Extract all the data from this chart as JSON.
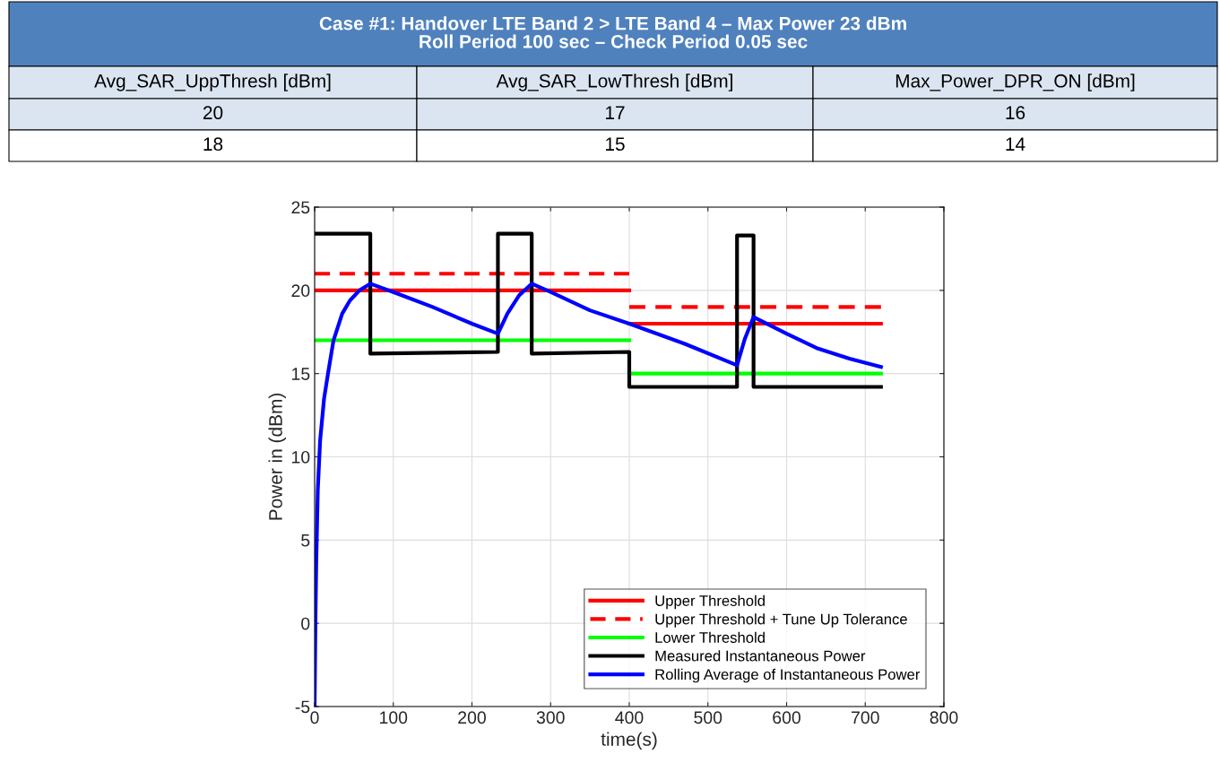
{
  "chart_data": {
    "type": "line",
    "title": "Case #1: Handover LTE Band 2 > LTE Band 4 – Max Power 23 dBm\nRoll Period 100 sec – Check Period 0.05 sec",
    "annotations": [
      "Avg_SAR_UppThresh [dBm]",
      "Avg_SAR_LowThresh [dBm]",
      "Max_Power_DPR_ON [dBm]",
      "20",
      "17",
      "16",
      "18",
      "15",
      "14"
    ],
    "xlabel": "time(s)",
    "ylabel": "Power in (dBm)",
    "xlim": [
      0,
      800
    ],
    "xticks": [
      0,
      100,
      200,
      300,
      400,
      500,
      600,
      700,
      800
    ],
    "ylim": [
      -5,
      25
    ],
    "yticks": [
      -5,
      0,
      5,
      10,
      15,
      20,
      25
    ],
    "grid": true,
    "legend": "bottom right",
    "series": [
      {
        "name": "Upper Threshold",
        "color": "#ff0000",
        "line_style": "solid",
        "x": [
          0,
          400
        ],
        "values": [
          20,
          20
        ]
      },
      {
        "color": "#ff0000",
        "line_style": "solid",
        "x": [
          400,
          720
        ],
        "values": [
          18,
          18
        ]
      },
      {
        "name": "Upper Threshold + Tune Up Tolerance",
        "color": "#ff0000",
        "line_style": "dashed",
        "x": [
          0,
          400
        ],
        "values": [
          21,
          21
        ]
      },
      {
        "color": "#ff0000",
        "line_style": "dashed",
        "x": [
          400,
          720
        ],
        "values": [
          19,
          19
        ]
      },
      {
        "name": "Lower Threshold",
        "color": "#00ff00",
        "line_style": "solid",
        "x": [
          0,
          400
        ],
        "values": [
          17,
          17
        ]
      },
      {
        "color": "#00ff00",
        "line_style": "solid",
        "x": [
          400,
          720
        ],
        "values": [
          15,
          15
        ]
      },
      {
        "name": "Measured Instantaneous Power",
        "color": "#000000",
        "line_style": "solid",
        "x": [
          0,
          70.8,
          70.8,
          233,
          233,
          276,
          276,
          400,
          400,
          537,
          537,
          558,
          558,
          720
        ],
        "values": [
          23.4,
          23.4,
          16.2,
          16.3,
          23.4,
          23.4,
          16.2,
          16.3,
          14.2,
          14.2,
          23.3,
          23.3,
          14.2,
          14.2
        ]
      },
      {
        "name": "Rolling Average of Instantaneous Power",
        "color": "#0000ff",
        "line_style": "solid",
        "x": [
          0,
          1,
          2,
          4,
          7,
          12,
          17,
          24,
          35,
          45,
          57,
          70.8,
          100,
          150,
          200,
          233,
          245,
          260,
          276,
          300,
          350,
          400,
          470,
          537,
          547,
          558,
          600,
          640,
          680,
          720
        ],
        "values": [
          -5,
          0,
          3.5,
          8,
          11,
          13.5,
          15,
          17,
          18.6,
          19.4,
          20,
          20.4,
          19.9,
          19.0,
          18.0,
          17.4,
          18.6,
          19.7,
          20.4,
          19.9,
          18.8,
          18.0,
          16.8,
          15.5,
          17.1,
          18.4,
          17.4,
          16.5,
          15.9,
          15.4
        ]
      }
    ]
  }
}
